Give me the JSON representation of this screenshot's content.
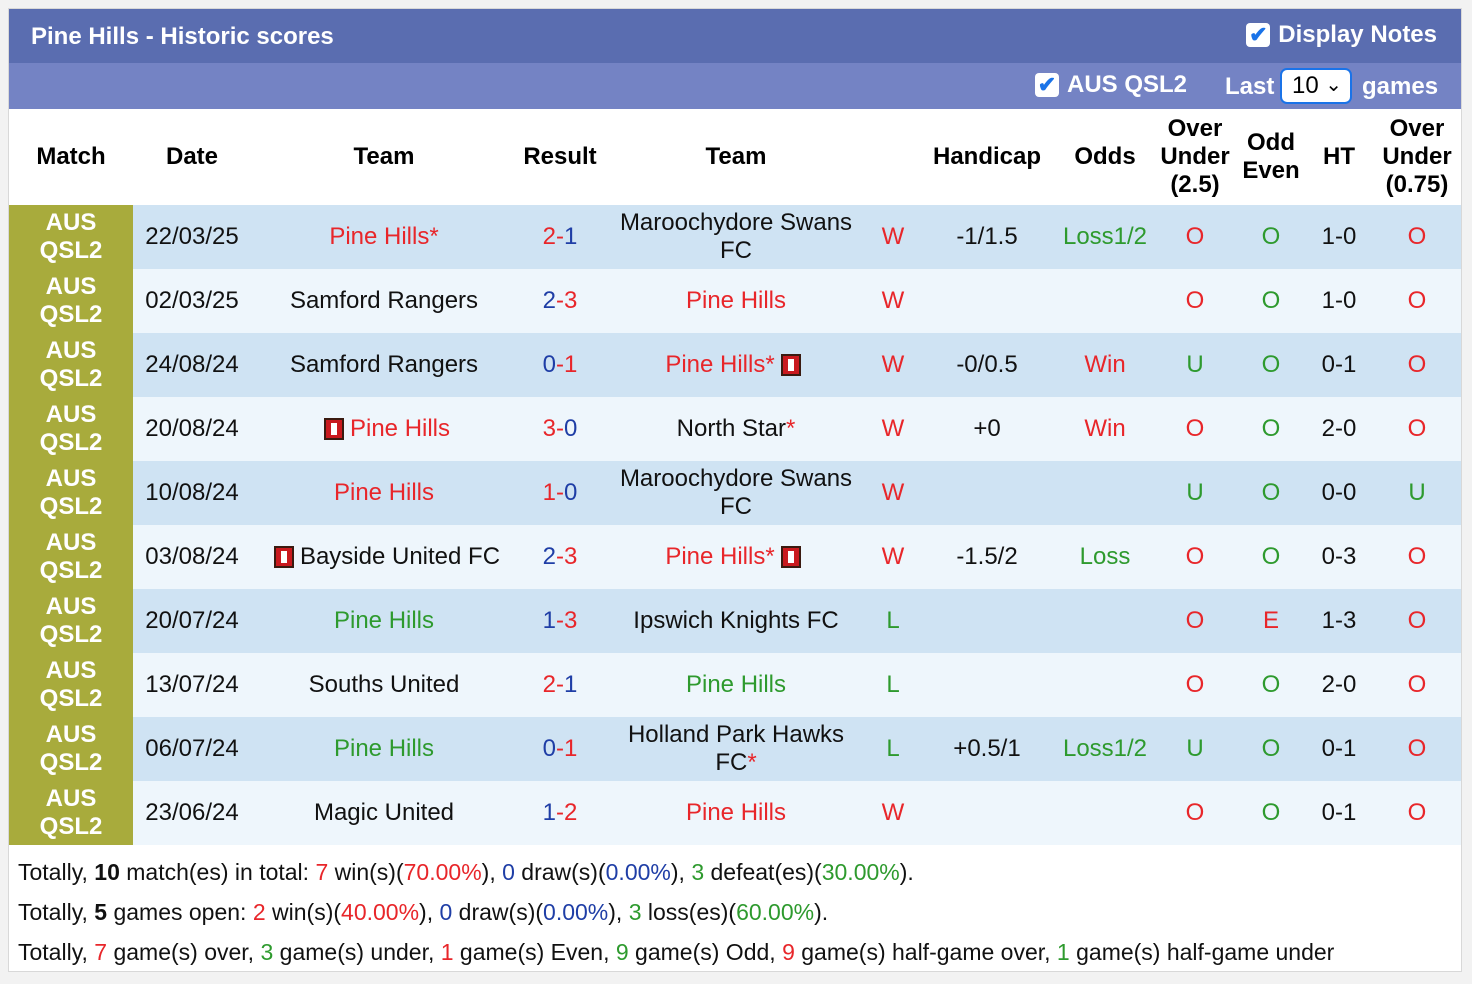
{
  "header": {
    "title": "Pine Hills - Historic scores",
    "display_notes_label": "Display Notes",
    "league_filter_label": "AUS QSL2",
    "last_label": "Last",
    "games_count": "10",
    "games_label": "games"
  },
  "columns": {
    "match": "Match",
    "date": "Date",
    "team_home": "Team",
    "result": "Result",
    "team_away": "Team",
    "handicap": "Handicap",
    "odds": "Odds",
    "ou_l1": "Over",
    "ou_l2": "Under",
    "ou_l3": "(2.5)",
    "oe_l1": "Odd",
    "oe_l2": "Even",
    "ht": "HT",
    "ou2_l1": "Over",
    "ou2_l2": "Under",
    "ou2_l3": "(0.75)"
  },
  "colors": {
    "title_bar": "#5a6db0",
    "filter_bar": "#7483c4",
    "league_cell": "#a8ab3c",
    "win_red": "#e8262a",
    "blue": "#1f3ea6",
    "green": "#2e9a2e"
  },
  "rows": [
    {
      "league1": "AUS",
      "league2": "QSL2",
      "date": "22/03/25",
      "home": "Pine Hills",
      "home_star": "*",
      "home_color": "red",
      "home_card": false,
      "score_h": "2",
      "score_a": "1",
      "score_h_color": "red",
      "score_a_color": "blue",
      "away": "Maroochydore Swans FC",
      "away_l1": "Maroochydore Swans",
      "away_l2": "FC",
      "away_star": "",
      "away_color": "black",
      "away_card": false,
      "wl": "W",
      "wl_color": "red",
      "handicap": "-1/1.5",
      "odds": "Loss1/2",
      "odds_color": "green",
      "ou": "O",
      "ou_color": "red",
      "oe": "O",
      "oe_color": "green",
      "ht": "1-0",
      "ou2": "O",
      "ou2_color": "red"
    },
    {
      "league1": "AUS",
      "league2": "QSL2",
      "date": "02/03/25",
      "home": "Samford Rangers",
      "home_star": "",
      "home_color": "black",
      "home_card": false,
      "score_h": "2",
      "score_a": "3",
      "score_h_color": "blue",
      "score_a_color": "red",
      "away": "Pine Hills",
      "away_l1": "Pine Hills",
      "away_l2": "",
      "away_star": "",
      "away_color": "red",
      "away_card": false,
      "wl": "W",
      "wl_color": "red",
      "handicap": "",
      "odds": "",
      "odds_color": "black",
      "ou": "O",
      "ou_color": "red",
      "oe": "O",
      "oe_color": "green",
      "ht": "1-0",
      "ou2": "O",
      "ou2_color": "red"
    },
    {
      "league1": "AUS",
      "league2": "QSL2",
      "date": "24/08/24",
      "home": "Samford Rangers",
      "home_star": "",
      "home_color": "black",
      "home_card": false,
      "score_h": "0",
      "score_a": "1",
      "score_h_color": "blue",
      "score_a_color": "red",
      "away": "Pine Hills",
      "away_l1": "Pine Hills",
      "away_l2": "",
      "away_star": "*",
      "away_color": "red",
      "away_card": true,
      "wl": "W",
      "wl_color": "red",
      "handicap": "-0/0.5",
      "odds": "Win",
      "odds_color": "red",
      "ou": "U",
      "ou_color": "green",
      "oe": "O",
      "oe_color": "green",
      "ht": "0-1",
      "ou2": "O",
      "ou2_color": "red"
    },
    {
      "league1": "AUS",
      "league2": "QSL2",
      "date": "20/08/24",
      "home": "Pine Hills",
      "home_star": "",
      "home_color": "red",
      "home_card": true,
      "score_h": "3",
      "score_a": "0",
      "score_h_color": "red",
      "score_a_color": "blue",
      "away": "North Star",
      "away_l1": "North Star",
      "away_l2": "",
      "away_star": "*",
      "away_color": "black",
      "away_card": false,
      "wl": "W",
      "wl_color": "red",
      "handicap": "+0",
      "odds": "Win",
      "odds_color": "red",
      "ou": "O",
      "ou_color": "red",
      "oe": "O",
      "oe_color": "green",
      "ht": "2-0",
      "ou2": "O",
      "ou2_color": "red"
    },
    {
      "league1": "AUS",
      "league2": "QSL2",
      "date": "10/08/24",
      "home": "Pine Hills",
      "home_star": "",
      "home_color": "red",
      "home_card": false,
      "score_h": "1",
      "score_a": "0",
      "score_h_color": "red",
      "score_a_color": "blue",
      "away": "Maroochydore Swans FC",
      "away_l1": "Maroochydore Swans",
      "away_l2": "FC",
      "away_star": "",
      "away_color": "black",
      "away_card": false,
      "wl": "W",
      "wl_color": "red",
      "handicap": "",
      "odds": "",
      "odds_color": "black",
      "ou": "U",
      "ou_color": "green",
      "oe": "O",
      "oe_color": "green",
      "ht": "0-0",
      "ou2": "U",
      "ou2_color": "green"
    },
    {
      "league1": "AUS",
      "league2": "QSL2",
      "date": "03/08/24",
      "home": "Bayside United FC",
      "home_star": "",
      "home_color": "black",
      "home_card": true,
      "score_h": "2",
      "score_a": "3",
      "score_h_color": "blue",
      "score_a_color": "red",
      "away": "Pine Hills",
      "away_l1": "Pine Hills",
      "away_l2": "",
      "away_star": "*",
      "away_color": "red",
      "away_card": true,
      "wl": "W",
      "wl_color": "red",
      "handicap": "-1.5/2",
      "odds": "Loss",
      "odds_color": "green",
      "ou": "O",
      "ou_color": "red",
      "oe": "O",
      "oe_color": "green",
      "ht": "0-3",
      "ou2": "O",
      "ou2_color": "red"
    },
    {
      "league1": "AUS",
      "league2": "QSL2",
      "date": "20/07/24",
      "home": "Pine Hills",
      "home_star": "",
      "home_color": "green",
      "home_card": false,
      "score_h": "1",
      "score_a": "3",
      "score_h_color": "blue",
      "score_a_color": "red",
      "away": "Ipswich Knights FC",
      "away_l1": "Ipswich Knights FC",
      "away_l2": "",
      "away_star": "",
      "away_color": "black",
      "away_card": false,
      "wl": "L",
      "wl_color": "green",
      "handicap": "",
      "odds": "",
      "odds_color": "black",
      "ou": "O",
      "ou_color": "red",
      "oe": "E",
      "oe_color": "red",
      "ht": "1-3",
      "ou2": "O",
      "ou2_color": "red"
    },
    {
      "league1": "AUS",
      "league2": "QSL2",
      "date": "13/07/24",
      "home": "Souths United",
      "home_star": "",
      "home_color": "black",
      "home_card": false,
      "score_h": "2",
      "score_a": "1",
      "score_h_color": "red",
      "score_a_color": "blue",
      "away": "Pine Hills",
      "away_l1": "Pine Hills",
      "away_l2": "",
      "away_star": "",
      "away_color": "green",
      "away_card": false,
      "wl": "L",
      "wl_color": "green",
      "handicap": "",
      "odds": "",
      "odds_color": "black",
      "ou": "O",
      "ou_color": "red",
      "oe": "O",
      "oe_color": "green",
      "ht": "2-0",
      "ou2": "O",
      "ou2_color": "red"
    },
    {
      "league1": "AUS",
      "league2": "QSL2",
      "date": "06/07/24",
      "home": "Pine Hills",
      "home_star": "",
      "home_color": "green",
      "home_card": false,
      "score_h": "0",
      "score_a": "1",
      "score_h_color": "blue",
      "score_a_color": "red",
      "away": "Holland Park Hawks FC",
      "away_l1": "Holland Park Hawks",
      "away_l2": "FC",
      "away_star": "*",
      "away_color": "black",
      "away_card": false,
      "wl": "L",
      "wl_color": "green",
      "handicap": "+0.5/1",
      "odds": "Loss1/2",
      "odds_color": "green",
      "ou": "U",
      "ou_color": "green",
      "oe": "O",
      "oe_color": "green",
      "ht": "0-1",
      "ou2": "O",
      "ou2_color": "red"
    },
    {
      "league1": "AUS",
      "league2": "QSL2",
      "date": "23/06/24",
      "home": "Magic United",
      "home_star": "",
      "home_color": "black",
      "home_card": false,
      "score_h": "1",
      "score_a": "2",
      "score_h_color": "blue",
      "score_a_color": "red",
      "away": "Pine Hills",
      "away_l1": "Pine Hills",
      "away_l2": "",
      "away_star": "",
      "away_color": "red",
      "away_card": false,
      "wl": "W",
      "wl_color": "red",
      "handicap": "",
      "odds": "",
      "odds_color": "black",
      "ou": "O",
      "ou_color": "red",
      "oe": "O",
      "oe_color": "green",
      "ht": "0-1",
      "ou2": "O",
      "ou2_color": "red"
    }
  ],
  "summary": {
    "line1": {
      "t1": "Totally, ",
      "matches": "10",
      "t2": " match(es) in total: ",
      "wins": "7",
      "t3": " win(s)(",
      "win_pct": "70.00%",
      "t4": "), ",
      "draws": "0",
      "t5": " draw(s)(",
      "draw_pct": "0.00%",
      "t6": "), ",
      "defeats": "3",
      "t7": " defeat(es)(",
      "defeat_pct": "30.00%",
      "t8": ")."
    },
    "line2": {
      "t1": "Totally, ",
      "open": "5",
      "t2": " games open: ",
      "wins": "2",
      "t3": " win(s)(",
      "win_pct": "40.00%",
      "t4": "), ",
      "draws": "0",
      "t5": " draw(s)(",
      "draw_pct": "0.00%",
      "t6": "), ",
      "losses": "3",
      "t7": " loss(es)(",
      "loss_pct": "60.00%",
      "t8": ")."
    },
    "line3": {
      "t1": "Totally, ",
      "over": "7",
      "t2": " game(s) over, ",
      "under": "3",
      "t3": " game(s) under, ",
      "even": "1",
      "t4": " game(s) Even, ",
      "odd": "9",
      "t5": " game(s) Odd, ",
      "hg_over": "9",
      "t6": " game(s) half-game over, ",
      "hg_under": "1",
      "t7": " game(s) half-game under"
    }
  }
}
